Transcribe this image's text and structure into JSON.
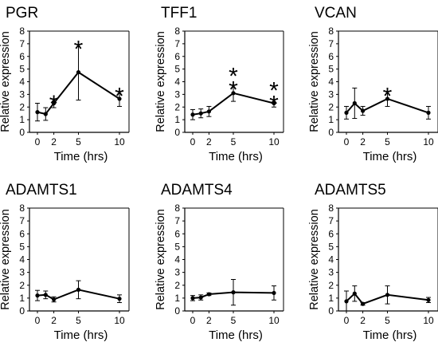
{
  "figure": {
    "panels": [
      {
        "title": "PGR",
        "ylabel": "Relative expression",
        "xlabel": "Time (hrs)"
      },
      {
        "title": "TFF1",
        "ylabel": "Relative expression",
        "xlabel": "Time (hrs)"
      },
      {
        "title": "VCAN",
        "ylabel": "Relative expression",
        "xlabel": "Time (hrs)"
      },
      {
        "title": "ADAMTS1",
        "ylabel": "Relative expression",
        "xlabel": "Time (hrs)"
      },
      {
        "title": "ADAMTS4",
        "ylabel": "Relative expression",
        "xlabel": "Time (hrs)"
      },
      {
        "title": "ADAMTS5",
        "ylabel": "Relative expression",
        "xlabel": "Time (hrs)"
      }
    ]
  },
  "chart_data": [
    {
      "type": "line",
      "title": "PGR",
      "xlabel": "Time (hrs)",
      "ylabel": "Relative expression",
      "x": [
        0,
        1,
        2,
        5,
        10
      ],
      "y": [
        1.6,
        1.45,
        2.3,
        4.75,
        2.65
      ],
      "err": [
        0.7,
        0.5,
        0.35,
        2.2,
        0.6
      ],
      "significance": [
        "",
        "",
        "*",
        "*",
        "*"
      ],
      "xticks": [
        "0",
        "2",
        "4",
        "6",
        "8",
        "10"
      ],
      "xlim": [
        0,
        10
      ],
      "yticks": [
        "0",
        "1",
        "2",
        "3",
        "4",
        "5",
        "6",
        "7",
        "8"
      ],
      "ylim": [
        0,
        8
      ]
    },
    {
      "type": "line",
      "title": "TFF1",
      "xlabel": "Time (hrs)",
      "ylabel": "Relative expression",
      "x": [
        0,
        1,
        2,
        5,
        10
      ],
      "y": [
        1.4,
        1.5,
        1.65,
        3.1,
        2.3
      ],
      "err": [
        0.4,
        0.35,
        0.4,
        0.65,
        0.3
      ],
      "significance": [
        "",
        "",
        "",
        "**",
        "**"
      ],
      "xticks": [
        "0",
        "2",
        "4",
        "6",
        "8",
        "10"
      ],
      "xlim": [
        0,
        10
      ],
      "yticks": [
        "0",
        "1",
        "2",
        "3",
        "4",
        "5",
        "6",
        "7",
        "8"
      ],
      "ylim": [
        0,
        8
      ]
    },
    {
      "type": "line",
      "title": "VCAN",
      "xlabel": "Time (hrs)",
      "ylabel": "Relative expression",
      "x": [
        0,
        1,
        2,
        5,
        10
      ],
      "y": [
        1.55,
        2.3,
        1.7,
        2.65,
        1.55
      ],
      "err": [
        0.5,
        1.2,
        0.35,
        0.6,
        0.5
      ],
      "significance": [
        "",
        "",
        "",
        "*",
        ""
      ],
      "xticks": [
        "0",
        "2",
        "4",
        "6",
        "8",
        "10"
      ],
      "xlim": [
        0,
        10
      ],
      "yticks": [
        "0",
        "1",
        "2",
        "3",
        "4",
        "5",
        "6",
        "7",
        "8"
      ],
      "ylim": [
        0,
        8
      ]
    },
    {
      "type": "line",
      "title": "ADAMTS1",
      "xlabel": "Time (hrs)",
      "ylabel": "Relative expression",
      "x": [
        0,
        1,
        2,
        5,
        10
      ],
      "y": [
        1.2,
        1.25,
        0.9,
        1.65,
        0.95
      ],
      "err": [
        0.4,
        0.3,
        0.2,
        0.7,
        0.3
      ],
      "significance": [
        "",
        "",
        "",
        "",
        ""
      ],
      "xticks": [
        "0",
        "2",
        "4",
        "6",
        "8",
        "10"
      ],
      "xlim": [
        0,
        10
      ],
      "yticks": [
        "0",
        "1",
        "2",
        "3",
        "4",
        "5",
        "6",
        "7",
        "8"
      ],
      "ylim": [
        0,
        8
      ]
    },
    {
      "type": "line",
      "title": "ADAMTS4",
      "xlabel": "Time (hrs)",
      "ylabel": "Relative expression",
      "x": [
        0,
        1,
        2,
        5,
        10
      ],
      "y": [
        1.0,
        1.05,
        1.3,
        1.45,
        1.4
      ],
      "err": [
        0.2,
        0.2,
        0.1,
        1.0,
        0.55
      ],
      "significance": [
        "",
        "",
        "",
        "",
        ""
      ],
      "xticks": [
        "0",
        "2",
        "4",
        "6",
        "8",
        "10"
      ],
      "xlim": [
        0,
        10
      ],
      "yticks": [
        "0",
        "1",
        "2",
        "3",
        "4",
        "5",
        "6",
        "7",
        "8"
      ],
      "ylim": [
        0,
        8
      ]
    },
    {
      "type": "line",
      "title": "ADAMTS5",
      "xlabel": "Time (hrs)",
      "ylabel": "Relative expression",
      "x": [
        0,
        1,
        2,
        5,
        10
      ],
      "y": [
        0.75,
        1.35,
        0.55,
        1.25,
        0.85
      ],
      "err": [
        0.8,
        0.6,
        0.1,
        0.7,
        0.2
      ],
      "significance": [
        "",
        "",
        "",
        "",
        ""
      ],
      "xticks": [
        "0",
        "2",
        "4",
        "6",
        "7",
        "8",
        "10"
      ],
      "xlim": [
        0,
        10
      ],
      "yticks": [
        "0",
        "1",
        "2",
        "3",
        "4",
        "5",
        "6",
        "7",
        "8"
      ],
      "ylim": [
        0,
        8
      ]
    }
  ]
}
